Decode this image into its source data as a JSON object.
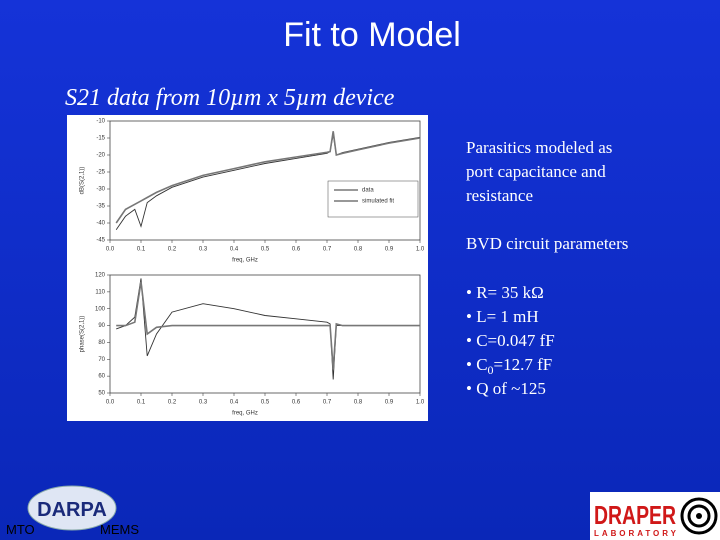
{
  "title": "Fit to Model",
  "subtitle": "S21 data from 10µm x 5µm device",
  "chart_data": [
    {
      "type": "line",
      "x_label": "freq, GHz",
      "y_label": "dB(S(2,1))",
      "x": [
        0.02,
        0.05,
        0.08,
        0.1,
        0.12,
        0.15,
        0.2,
        0.3,
        0.4,
        0.5,
        0.6,
        0.7,
        0.71,
        0.72,
        0.73,
        0.75,
        0.8,
        0.9,
        1.0
      ],
      "series": [
        {
          "name": "data",
          "color": "#333333",
          "values": [
            -42,
            -38,
            -36,
            -41,
            -34,
            -32,
            -29.5,
            -26.5,
            -24.5,
            -22.5,
            -21,
            -19.5,
            -19,
            -14,
            -20,
            -19.3,
            -18.3,
            -16.3,
            -14.8
          ]
        },
        {
          "name": "simulated fit",
          "color": "#777777",
          "values": [
            -40,
            -36,
            -34.5,
            -33.5,
            -32.5,
            -31,
            -29,
            -26,
            -24,
            -22,
            -20.6,
            -19.2,
            -19,
            -13,
            -20,
            -19.5,
            -18.5,
            -16.5,
            -15
          ]
        }
      ],
      "xlim": [
        0,
        1
      ],
      "xticks": [
        {
          "value": 0,
          "label": "0.0"
        },
        0.1,
        0.2,
        0.3,
        0.4,
        0.5,
        0.6,
        0.7,
        0.8,
        0.9,
        {
          "value": 1,
          "label": "1.0"
        }
      ],
      "ylim": [
        -45,
        -10
      ],
      "yticks": [
        -45,
        -40,
        -35,
        -30,
        -25,
        -20,
        -15,
        -10
      ],
      "legend": "right"
    },
    {
      "type": "line",
      "x_label": "freq, GHz",
      "y_label": "phase(S(2,1))",
      "x": [
        0.02,
        0.05,
        0.08,
        0.1,
        0.12,
        0.15,
        0.2,
        0.3,
        0.4,
        0.5,
        0.6,
        0.7,
        0.71,
        0.72,
        0.73,
        0.75,
        0.8,
        0.9,
        1.0
      ],
      "series": [
        {
          "color": "#333333",
          "values": [
            88,
            90,
            95,
            118,
            72,
            85,
            98,
            103,
            100,
            96,
            94,
            92,
            91,
            58,
            90,
            90,
            90,
            90,
            90
          ]
        },
        {
          "color": "#777777",
          "values": [
            90,
            90,
            92,
            116,
            85,
            89,
            90,
            90,
            90,
            90,
            90,
            90,
            90,
            64,
            91,
            90,
            90,
            90,
            90
          ]
        }
      ],
      "xlim": [
        0,
        1
      ],
      "xticks": [
        {
          "value": 0,
          "label": "0.0"
        },
        0.1,
        0.2,
        0.3,
        0.4,
        0.5,
        0.6,
        0.7,
        0.8,
        0.9,
        {
          "value": 1,
          "label": "1.0"
        }
      ],
      "ylim": [
        50,
        120
      ],
      "yticks": [
        50,
        60,
        70,
        80,
        90,
        100,
        110,
        120
      ]
    }
  ],
  "notes": {
    "paragraph": [
      "Parasitics modeled as",
      "port capacitance and",
      "resistance"
    ],
    "heading": "BVD circuit parameters",
    "bullets": [
      "• R= 35 kΩ",
      "• L= 1 mH",
      "• C=0.047 fF",
      {
        "text": "• C",
        "sub": "0",
        "rest": "=12.7 fF"
      },
      "• Q of ~125"
    ]
  },
  "logos": {
    "darpa": "DARPA",
    "mto": "MTO",
    "mems": "MEMS",
    "draper": "DRAPER",
    "laboratory": "LABORATORY"
  }
}
